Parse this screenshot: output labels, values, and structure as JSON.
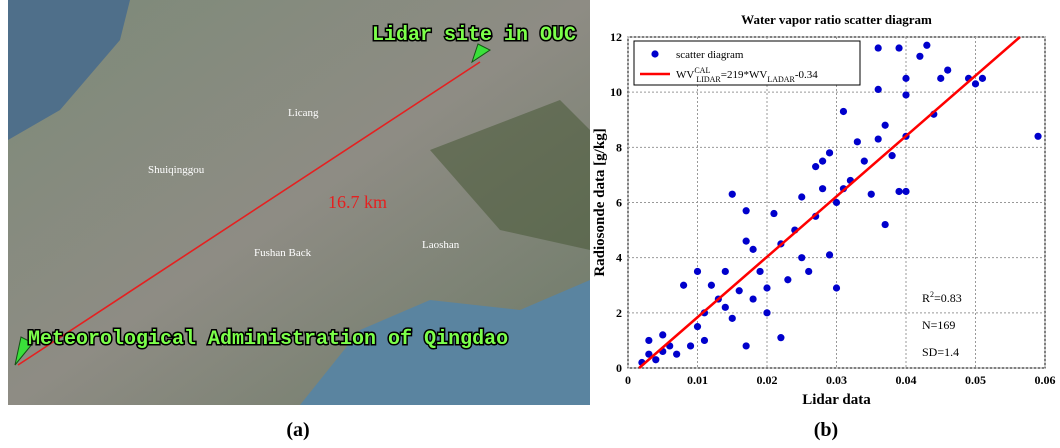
{
  "map": {
    "site_label": "Lidar site in OUC",
    "station_label": "Meteorological Administration of Qingdao",
    "distance_label": "16.7 km",
    "places": [
      "Licang",
      "Shuiqinggou",
      "Fushan Back",
      "Laoshan"
    ],
    "panel_label": "(a)"
  },
  "chart_data": {
    "type": "scatter",
    "title": "Water vapor ratio scatter diagram",
    "x_label": "Lidar data",
    "y_label": "Radiosonde data [g/kg]",
    "panel_label": "(b)",
    "xlim": [
      0,
      0.06
    ],
    "ylim": [
      0,
      12
    ],
    "xticks": [
      0,
      0.01,
      0.02,
      0.03,
      0.04,
      0.05,
      0.06
    ],
    "yticks": [
      0,
      2,
      4,
      6,
      8,
      10,
      12
    ],
    "grid": true,
    "series": [
      {
        "name": "scatter diagram",
        "color": "#0000cc",
        "x": [
          0.002,
          0.003,
          0.003,
          0.004,
          0.005,
          0.005,
          0.006,
          0.007,
          0.008,
          0.009,
          0.01,
          0.01,
          0.011,
          0.011,
          0.012,
          0.013,
          0.014,
          0.014,
          0.015,
          0.015,
          0.016,
          0.017,
          0.017,
          0.017,
          0.018,
          0.018,
          0.019,
          0.02,
          0.02,
          0.021,
          0.022,
          0.022,
          0.023,
          0.024,
          0.025,
          0.025,
          0.026,
          0.027,
          0.027,
          0.028,
          0.028,
          0.029,
          0.029,
          0.03,
          0.03,
          0.031,
          0.031,
          0.032,
          0.033,
          0.034,
          0.035,
          0.036,
          0.036,
          0.036,
          0.037,
          0.037,
          0.038,
          0.039,
          0.039,
          0.04,
          0.04,
          0.04,
          0.04,
          0.042,
          0.043,
          0.044,
          0.045,
          0.046,
          0.049,
          0.05,
          0.051,
          0.059
        ],
        "values": [
          0.2,
          0.5,
          1.0,
          0.3,
          1.2,
          0.6,
          0.8,
          0.5,
          3.0,
          0.8,
          1.5,
          3.5,
          1.0,
          2.0,
          3.0,
          2.5,
          2.2,
          3.5,
          6.3,
          1.8,
          2.8,
          4.6,
          5.7,
          0.8,
          2.5,
          4.3,
          3.5,
          2.9,
          2.0,
          5.6,
          1.1,
          4.5,
          3.2,
          5.0,
          6.2,
          4.0,
          3.5,
          7.3,
          5.5,
          6.5,
          7.5,
          4.1,
          7.8,
          2.9,
          6.0,
          9.3,
          6.5,
          6.8,
          8.2,
          7.5,
          6.3,
          10.1,
          11.6,
          8.3,
          8.8,
          5.2,
          7.7,
          6.4,
          11.6,
          10.5,
          8.4,
          6.4,
          9.9,
          11.3,
          11.7,
          9.2,
          10.5,
          10.8,
          10.5,
          10.3,
          10.5,
          8.4
        ]
      },
      {
        "name": [
          "WV",
          "CAL",
          "LIDAR",
          "=219*WV",
          "LADAR",
          "-0.34"
        ],
        "color": "#ff0000",
        "line": true,
        "x": [
          0.0016,
          0.0564
        ],
        "values": [
          0,
          12
        ]
      }
    ],
    "annotations": [
      [
        "R",
        "2",
        "=0.83"
      ],
      [
        "N=169"
      ],
      [
        "SD=1.4"
      ]
    ]
  }
}
